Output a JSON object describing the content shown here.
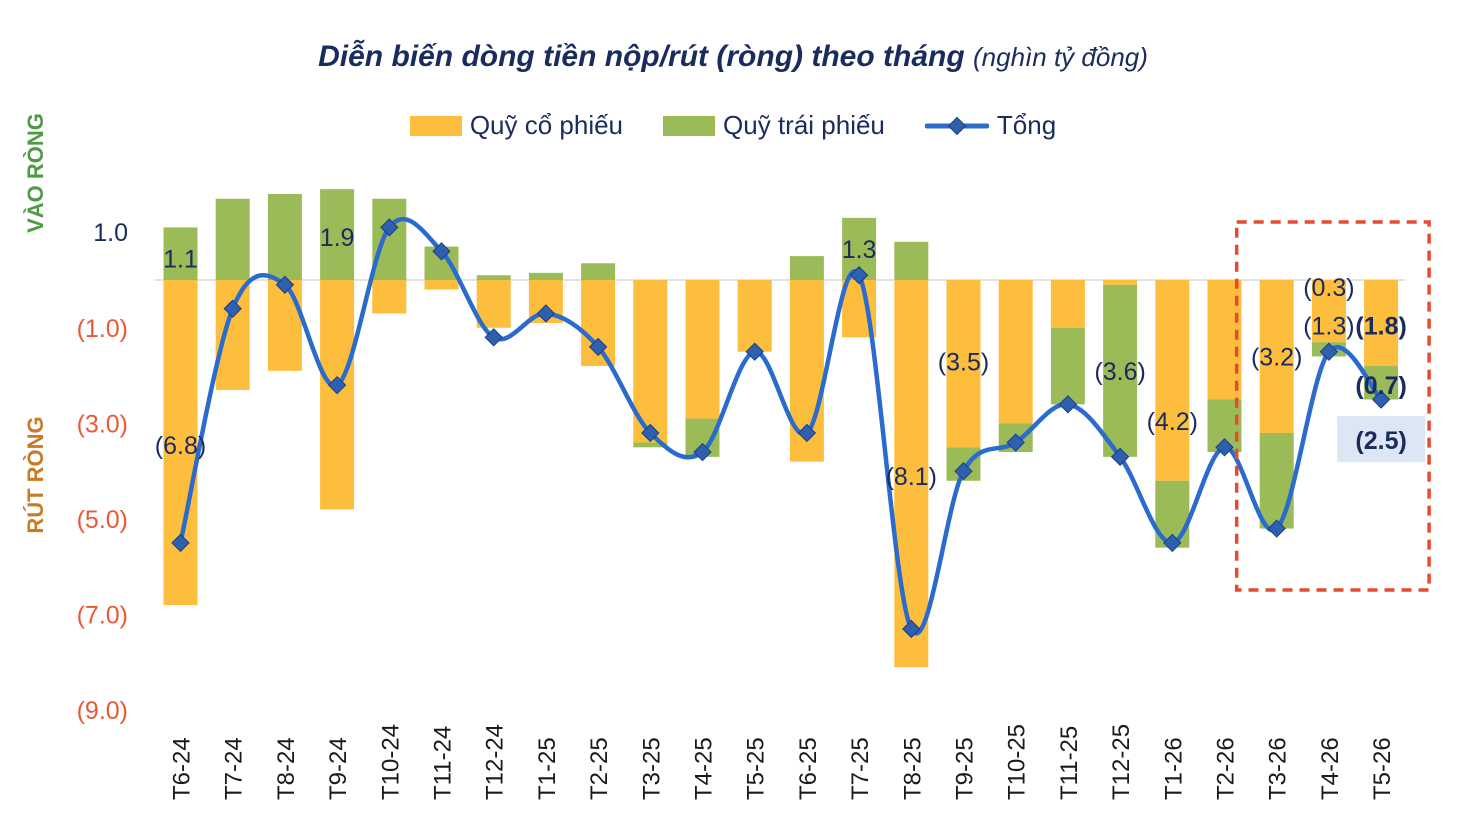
{
  "title": {
    "main": "Diễn biến dòng tiền nộp/rút (ròng) theo tháng",
    "unit": "(nghìn tỷ đồng)"
  },
  "side_labels": {
    "top": "VÀO RÒNG",
    "bottom": "RÚT RÒNG"
  },
  "colors": {
    "equity": "#FDBE3E",
    "bond": "#9BBB59",
    "total": "#2A6BCD",
    "marker": "#2F5FAF",
    "positive_text": "#1a2b5e",
    "negative_text": "#E8593A",
    "inflow_label": "#4E9A45",
    "outflow_label": "#C97A22",
    "highlight_box": "#E84A2F"
  },
  "chart_data": {
    "type": "bar",
    "stacked": true,
    "categories": [
      "T6-24",
      "T7-24",
      "T8-24",
      "T9-24",
      "T10-24",
      "T11-24",
      "T12-24",
      "T1-25",
      "T2-25",
      "T3-25",
      "T4-25",
      "T5-25",
      "T6-25",
      "T7-25",
      "T8-25",
      "T9-25",
      "T10-25",
      "T11-25",
      "T12-25",
      "T1-26",
      "T2-26",
      "T3-26",
      "T4-26",
      "T5-26"
    ],
    "series": [
      {
        "name": "Quỹ cổ phiếu",
        "type": "bar",
        "values": [
          -6.8,
          -2.3,
          -1.9,
          -4.8,
          -0.7,
          -0.2,
          -1.0,
          -0.9,
          -1.8,
          -3.4,
          -2.9,
          -1.5,
          -3.8,
          -1.2,
          -8.1,
          -3.5,
          -3.0,
          -1.0,
          -0.1,
          -4.2,
          -2.5,
          -3.2,
          -1.3,
          -1.8
        ]
      },
      {
        "name": "Quỹ trái phiếu",
        "type": "bar",
        "values": [
          1.1,
          1.7,
          1.8,
          1.9,
          1.7,
          0.7,
          0.1,
          0.15,
          0.35,
          -0.1,
          -0.8,
          0,
          0.5,
          1.3,
          0.8,
          -0.7,
          -0.6,
          -1.6,
          -3.6,
          -1.4,
          -1.1,
          -2.0,
          -0.3,
          -0.7
        ]
      },
      {
        "name": "Tổng",
        "type": "line",
        "values": [
          -5.5,
          -0.6,
          -0.1,
          -2.2,
          1.1,
          0.6,
          -1.2,
          -0.7,
          -1.4,
          -3.2,
          -3.6,
          -1.5,
          -3.2,
          0.1,
          -7.3,
          -4.0,
          -3.4,
          -2.6,
          -3.7,
          -5.5,
          -3.5,
          -5.2,
          -1.5,
          -2.5
        ]
      }
    ],
    "ylim": [
      -9.0,
      2.0
    ],
    "y_ticks": [
      1.0,
      -1.0,
      -3.0,
      -5.0,
      -7.0,
      -9.0
    ],
    "y_tick_labels": [
      "1.0",
      "(1.0)",
      "(3.0)",
      "(5.0)",
      "(7.0)",
      "(9.0)"
    ],
    "annotations": [
      {
        "text": "1.1",
        "x": "T6-24",
        "y": 0.45,
        "style": "plain"
      },
      {
        "text": "(6.8)",
        "x": "T6-24",
        "y": -3.45,
        "style": "plain"
      },
      {
        "text": "1.9",
        "x": "T9-24",
        "y": 0.9,
        "style": "plain"
      },
      {
        "text": "1.3",
        "x": "T7-25",
        "y": 0.65,
        "style": "plain"
      },
      {
        "text": "(8.1)",
        "x": "T8-25",
        "y": -4.1,
        "style": "plain"
      },
      {
        "text": "(3.5)",
        "x": "T9-25",
        "y": -1.7,
        "style": "plain"
      },
      {
        "text": "(3.6)",
        "x": "T12-25",
        "y": -1.9,
        "style": "plain"
      },
      {
        "text": "(4.2)",
        "x": "T1-26",
        "y": -2.95,
        "style": "plain"
      },
      {
        "text": "(3.2)",
        "x": "T3-26",
        "y": -1.6,
        "style": "plain"
      },
      {
        "text": "(0.3)",
        "x": "T4-26",
        "y": -0.15,
        "style": "plain"
      },
      {
        "text": "(1.3)",
        "x": "T4-26",
        "y": -0.95,
        "style": "plain"
      },
      {
        "text": "(1.8)",
        "x": "T5-26",
        "y": -0.95,
        "style": "bold"
      },
      {
        "text": "(0.7)",
        "x": "T5-26",
        "y": -2.2,
        "style": "bold"
      },
      {
        "text": "(2.5)",
        "x": "T5-26",
        "y": -3.35,
        "style": "boxed"
      }
    ],
    "highlight": {
      "from": "T3-26",
      "to": "T5-26",
      "style": "dashed-box"
    },
    "legend": "top"
  }
}
